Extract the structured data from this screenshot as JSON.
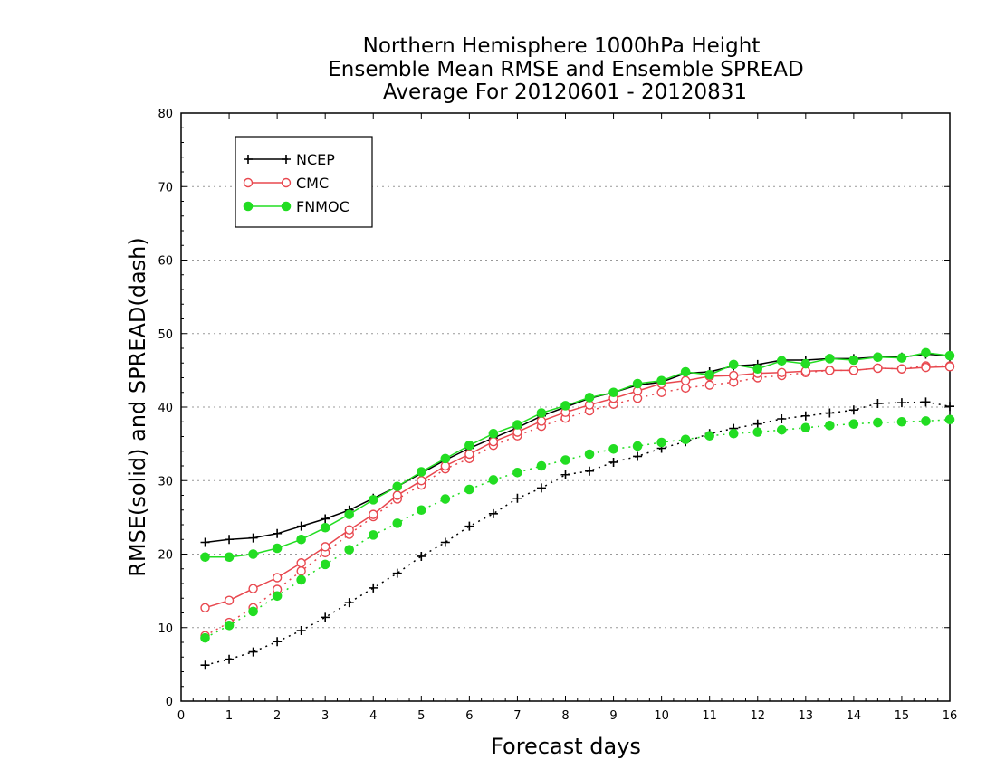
{
  "chart_data": {
    "type": "line",
    "title_lines": [
      "Northern Hemisphere 1000hPa Height",
      "Ensemble Mean RMSE and Ensemble SPREAD",
      "Average For 20120601 - 20120831"
    ],
    "xlabel": "Forecast days",
    "ylabel": "RMSE(solid) and SPREAD(dash)",
    "xlim": [
      0,
      16
    ],
    "ylim": [
      0,
      80
    ],
    "xticks": [
      0,
      1,
      2,
      3,
      4,
      5,
      6,
      7,
      8,
      9,
      10,
      11,
      12,
      13,
      14,
      15,
      16
    ],
    "yticks": [
      0,
      10,
      20,
      30,
      40,
      50,
      60,
      70,
      80
    ],
    "grid": "horizontal dotted",
    "legend_position": "top-left",
    "x": [
      0.5,
      1,
      1.5,
      2,
      2.5,
      3,
      3.5,
      4,
      4.5,
      5,
      5.5,
      6,
      6.5,
      7,
      7.5,
      8,
      8.5,
      9,
      9.5,
      10,
      10.5,
      11,
      11.5,
      12,
      12.5,
      13,
      13.5,
      14,
      14.5,
      15,
      15.5,
      16
    ],
    "series": [
      {
        "name": "NCEP",
        "color": "#000000",
        "marker": "plus",
        "rmse": [
          21.6,
          22.0,
          22.2,
          22.8,
          23.8,
          24.8,
          26.0,
          27.6,
          29.2,
          31.0,
          32.8,
          34.4,
          35.8,
          37.2,
          38.8,
          40.0,
          41.2,
          42.0,
          43.0,
          43.4,
          44.6,
          44.8,
          45.6,
          45.8,
          46.4,
          46.4,
          46.6,
          46.6,
          46.8,
          46.8,
          47.2,
          47.0
        ],
        "spread": [
          4.9,
          5.7,
          6.7,
          8.1,
          9.6,
          11.4,
          13.4,
          15.4,
          17.4,
          19.7,
          21.6,
          23.8,
          25.5,
          27.6,
          29.0,
          30.8,
          31.3,
          32.5,
          33.3,
          34.4,
          35.3,
          36.4,
          37.1,
          37.7,
          38.4,
          38.8,
          39.2,
          39.6,
          40.5,
          40.6,
          40.7,
          40.1
        ]
      },
      {
        "name": "CMC",
        "color": "#e8484f",
        "marker": "open-circle",
        "rmse": [
          12.7,
          13.7,
          15.3,
          16.8,
          18.8,
          21.0,
          23.3,
          25.4,
          28.0,
          30.0,
          32.0,
          33.6,
          35.3,
          36.6,
          38.1,
          39.3,
          40.3,
          41.2,
          42.2,
          43.2,
          43.6,
          44.2,
          44.3,
          44.6,
          44.7,
          44.9,
          45.0,
          45.0,
          45.3,
          45.2,
          45.4,
          45.5
        ],
        "spread": [
          8.9,
          10.7,
          12.7,
          15.2,
          17.7,
          20.2,
          22.7,
          25.1,
          27.5,
          29.4,
          31.6,
          33.0,
          34.8,
          36.1,
          37.4,
          38.5,
          39.5,
          40.4,
          41.2,
          42.0,
          42.6,
          43.0,
          43.4,
          44.0,
          44.3,
          44.7,
          45.0,
          45.0,
          45.3,
          45.2,
          45.6,
          45.6
        ]
      },
      {
        "name": "FNMOC",
        "color": "#22dd22",
        "marker": "filled-circle",
        "rmse": [
          19.6,
          19.6,
          20.0,
          20.8,
          22.0,
          23.6,
          25.4,
          27.4,
          29.2,
          31.2,
          33.0,
          34.8,
          36.4,
          37.6,
          39.2,
          40.2,
          41.3,
          42.0,
          43.2,
          43.6,
          44.8,
          44.4,
          45.8,
          45.2,
          46.3,
          45.9,
          46.6,
          46.4,
          46.8,
          46.7,
          47.4,
          47.0
        ],
        "spread": [
          8.6,
          10.3,
          12.2,
          14.3,
          16.5,
          18.6,
          20.6,
          22.6,
          24.2,
          26.0,
          27.5,
          28.8,
          30.1,
          31.1,
          32.0,
          32.8,
          33.6,
          34.3,
          34.7,
          35.2,
          35.6,
          36.1,
          36.4,
          36.6,
          36.9,
          37.2,
          37.5,
          37.7,
          37.9,
          38.0,
          38.1,
          38.3
        ]
      }
    ]
  }
}
